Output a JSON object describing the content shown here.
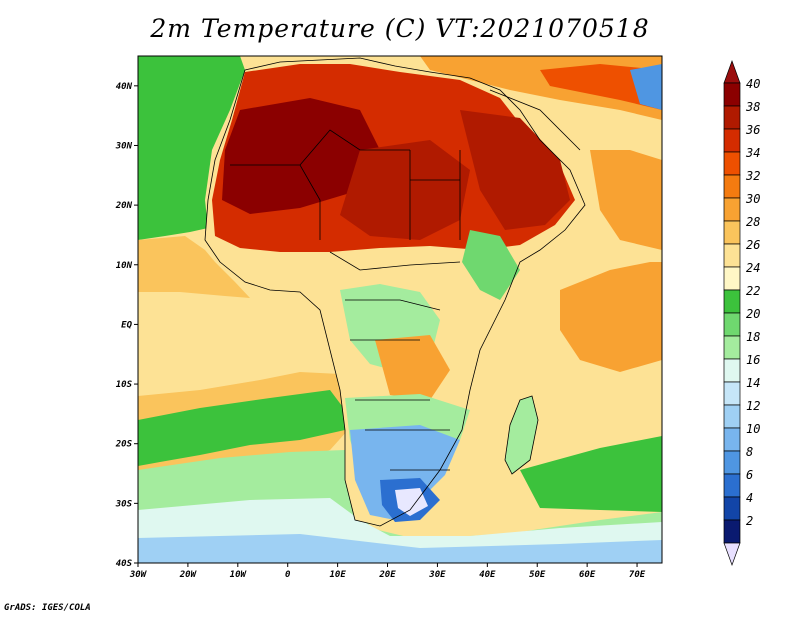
{
  "title": "2m Temperature (C) VT:2021070518",
  "credit": "GrADS: IGES/COLA",
  "map": {
    "lon_labels": [
      "30W",
      "20W",
      "10W",
      "0",
      "10E",
      "20E",
      "30E",
      "40E",
      "50E",
      "60E",
      "70E"
    ],
    "lat_labels": [
      "40N",
      "30N",
      "20N",
      "10N",
      "EQ",
      "10S",
      "20S",
      "30S",
      "40S"
    ],
    "lon_range": [
      -30,
      75
    ],
    "lat_range": [
      -40,
      45
    ]
  },
  "colorbar": {
    "levels": [
      "40",
      "38",
      "36",
      "34",
      "32",
      "30",
      "28",
      "26",
      "24",
      "22",
      "20",
      "18",
      "16",
      "14",
      "12",
      "10",
      "8",
      "6",
      "4",
      "2"
    ],
    "colors": [
      "#8b0000",
      "#b01a00",
      "#d42c00",
      "#ee5000",
      "#f47b10",
      "#f8a232",
      "#fac45c",
      "#fde295",
      "#fff7c6",
      "#3cc23c",
      "#6fd86f",
      "#a4ec9e",
      "#dff8f0",
      "#c6e6f8",
      "#9fd0f4",
      "#78b5ee",
      "#4f96e2",
      "#2b6fd0",
      "#1245a8",
      "#0a1a70"
    ],
    "top_color": "#9a0e0e",
    "bottom_color": "#e8e0ff"
  }
}
